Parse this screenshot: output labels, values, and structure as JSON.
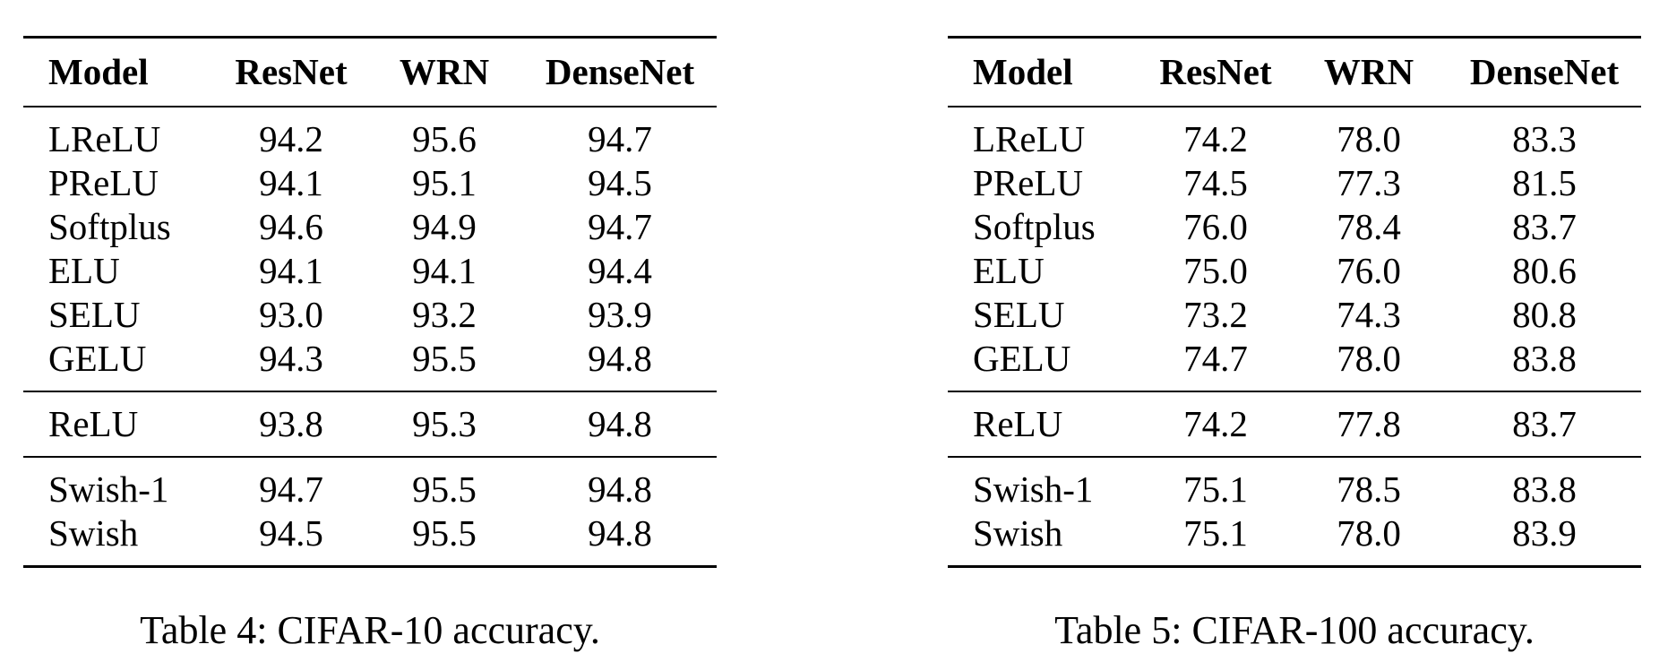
{
  "columns": [
    "Model",
    "ResNet",
    "WRN",
    "DenseNet"
  ],
  "tables": [
    {
      "caption": "Table 4: CIFAR-10 accuracy.",
      "groups": [
        [
          [
            "LReLU",
            "94.2",
            "95.6",
            "94.7"
          ],
          [
            "PReLU",
            "94.1",
            "95.1",
            "94.5"
          ],
          [
            "Softplus",
            "94.6",
            "94.9",
            "94.7"
          ],
          [
            "ELU",
            "94.1",
            "94.1",
            "94.4"
          ],
          [
            "SELU",
            "93.0",
            "93.2",
            "93.9"
          ],
          [
            "GELU",
            "94.3",
            "95.5",
            "94.8"
          ]
        ],
        [
          [
            "ReLU",
            "93.8",
            "95.3",
            "94.8"
          ]
        ],
        [
          [
            "Swish-1",
            "94.7",
            "95.5",
            "94.8"
          ],
          [
            "Swish",
            "94.5",
            "95.5",
            "94.8"
          ]
        ]
      ]
    },
    {
      "caption": "Table 5: CIFAR-100 accuracy.",
      "groups": [
        [
          [
            "LReLU",
            "74.2",
            "78.0",
            "83.3"
          ],
          [
            "PReLU",
            "74.5",
            "77.3",
            "81.5"
          ],
          [
            "Softplus",
            "76.0",
            "78.4",
            "83.7"
          ],
          [
            "ELU",
            "75.0",
            "76.0",
            "80.6"
          ],
          [
            "SELU",
            "73.2",
            "74.3",
            "80.8"
          ],
          [
            "GELU",
            "74.7",
            "78.0",
            "83.8"
          ]
        ],
        [
          [
            "ReLU",
            "74.2",
            "77.8",
            "83.7"
          ]
        ],
        [
          [
            "Swish-1",
            "75.1",
            "78.5",
            "83.8"
          ],
          [
            "Swish",
            "75.1",
            "78.0",
            "83.9"
          ]
        ]
      ]
    }
  ]
}
